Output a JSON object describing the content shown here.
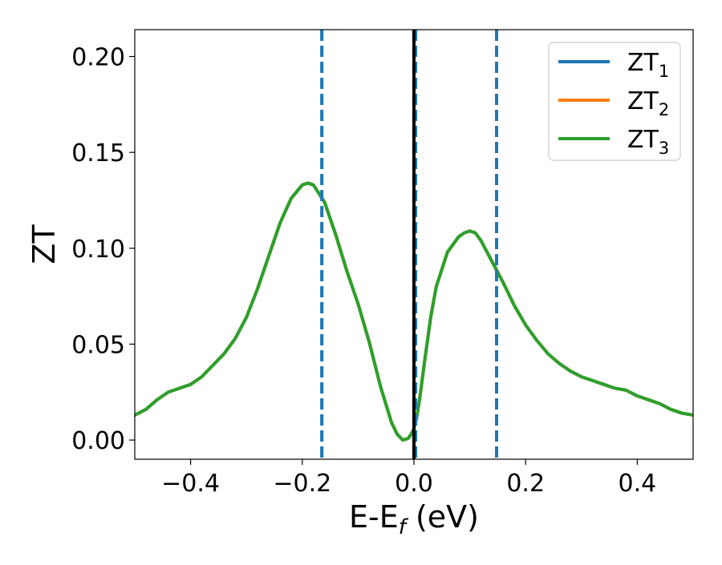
{
  "chart_data": {
    "type": "line",
    "title": "",
    "xlabel": "E-E",
    "xlabel_sub": "f",
    "xlabel_unit": " (eV)",
    "ylabel": "ZT",
    "xlim": [
      -0.5,
      0.5
    ],
    "ylim": [
      -0.01,
      0.214
    ],
    "xticks": [
      -0.4,
      -0.2,
      0.0,
      0.2,
      0.4
    ],
    "xtick_labels": [
      "−0.4",
      "−0.2",
      "0.0",
      "0.2",
      "0.4"
    ],
    "yticks": [
      0.0,
      0.05,
      0.1,
      0.15,
      0.2
    ],
    "ytick_labels": [
      "0.00",
      "0.05",
      "0.10",
      "0.15",
      "0.20"
    ],
    "grid": false,
    "legend_position": "top-right",
    "x": [
      -0.5,
      -0.48,
      -0.46,
      -0.44,
      -0.42,
      -0.4,
      -0.38,
      -0.36,
      -0.34,
      -0.32,
      -0.3,
      -0.28,
      -0.26,
      -0.24,
      -0.22,
      -0.2,
      -0.19,
      -0.18,
      -0.16,
      -0.14,
      -0.12,
      -0.1,
      -0.08,
      -0.06,
      -0.04,
      -0.03,
      -0.02,
      -0.013,
      -0.01,
      -0.005,
      0.0,
      0.005,
      0.01,
      0.02,
      0.03,
      0.04,
      0.06,
      0.08,
      0.09,
      0.1,
      0.11,
      0.12,
      0.14,
      0.16,
      0.18,
      0.2,
      0.22,
      0.24,
      0.26,
      0.28,
      0.3,
      0.32,
      0.34,
      0.36,
      0.38,
      0.4,
      0.42,
      0.44,
      0.46,
      0.48,
      0.5
    ],
    "series": [
      {
        "name": "ZT",
        "sub": "1",
        "color": "#1f77b4",
        "values": [
          0.013,
          0.016,
          0.021,
          0.025,
          0.027,
          0.029,
          0.033,
          0.039,
          0.045,
          0.053,
          0.064,
          0.079,
          0.096,
          0.113,
          0.126,
          0.133,
          0.134,
          0.133,
          0.124,
          0.107,
          0.088,
          0.071,
          0.051,
          0.028,
          0.009,
          0.003,
          0.0,
          0.0006,
          0.001,
          0.003,
          0.006,
          0.012,
          0.021,
          0.043,
          0.064,
          0.08,
          0.098,
          0.106,
          0.108,
          0.109,
          0.108,
          0.104,
          0.093,
          0.082,
          0.07,
          0.06,
          0.052,
          0.045,
          0.04,
          0.036,
          0.033,
          0.031,
          0.029,
          0.027,
          0.026,
          0.023,
          0.021,
          0.019,
          0.016,
          0.014,
          0.013
        ]
      },
      {
        "name": "ZT",
        "sub": "2",
        "color": "#ff7f0e",
        "values": [
          0.013,
          0.016,
          0.021,
          0.025,
          0.027,
          0.029,
          0.033,
          0.039,
          0.045,
          0.053,
          0.064,
          0.079,
          0.096,
          0.113,
          0.126,
          0.133,
          0.134,
          0.133,
          0.124,
          0.107,
          0.088,
          0.071,
          0.051,
          0.028,
          0.009,
          0.003,
          0.0,
          0.0006,
          0.001,
          0.003,
          0.006,
          0.012,
          0.021,
          0.043,
          0.064,
          0.08,
          0.098,
          0.106,
          0.108,
          0.109,
          0.108,
          0.104,
          0.093,
          0.082,
          0.07,
          0.06,
          0.052,
          0.045,
          0.04,
          0.036,
          0.033,
          0.031,
          0.029,
          0.027,
          0.026,
          0.023,
          0.021,
          0.019,
          0.016,
          0.014,
          0.013
        ]
      },
      {
        "name": "ZT",
        "sub": "3",
        "color": "#2ca02c",
        "values": [
          0.013,
          0.016,
          0.021,
          0.025,
          0.027,
          0.029,
          0.033,
          0.039,
          0.045,
          0.053,
          0.064,
          0.079,
          0.096,
          0.113,
          0.126,
          0.133,
          0.134,
          0.133,
          0.124,
          0.107,
          0.088,
          0.071,
          0.051,
          0.028,
          0.009,
          0.003,
          0.0,
          0.0006,
          0.001,
          0.003,
          0.006,
          0.012,
          0.021,
          0.043,
          0.064,
          0.08,
          0.098,
          0.106,
          0.108,
          0.109,
          0.108,
          0.104,
          0.093,
          0.082,
          0.07,
          0.06,
          0.052,
          0.045,
          0.04,
          0.036,
          0.033,
          0.031,
          0.029,
          0.027,
          0.026,
          0.023,
          0.021,
          0.019,
          0.016,
          0.014,
          0.013
        ]
      }
    ],
    "vlines": [
      {
        "x": -0.165,
        "style": "dashed",
        "color": "#1f77b4"
      },
      {
        "x": 0.003,
        "style": "dashed",
        "color": "#1f77b4"
      },
      {
        "x": 0.148,
        "style": "dashed",
        "color": "#1f77b4"
      },
      {
        "x": 0.0,
        "style": "solid",
        "color": "#000000"
      }
    ]
  }
}
